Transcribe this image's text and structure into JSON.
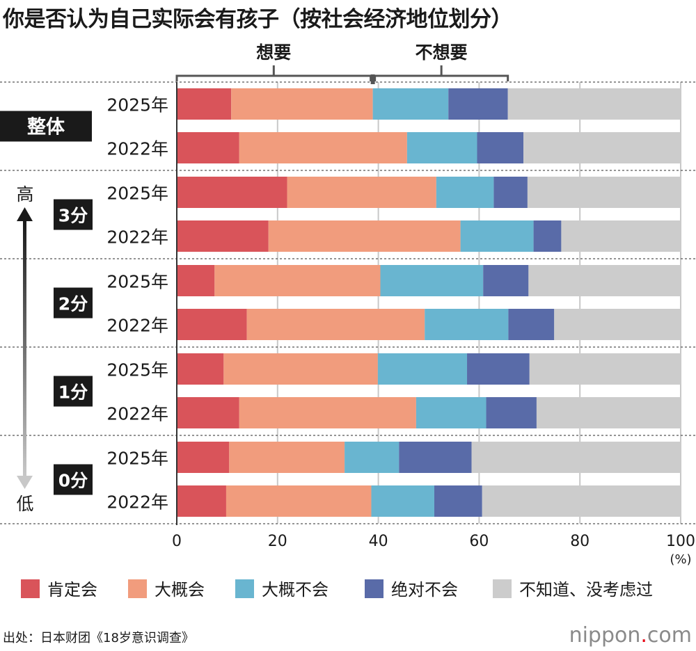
{
  "title": "你是否认为自己实际会有孩子（按社会经济地位划分）",
  "source": "出处：日本财团《18岁意识调查》",
  "logo": {
    "name": "nippon",
    "dot": ".",
    "tld": "com"
  },
  "chart_data": {
    "type": "bar",
    "orientation": "horizontal",
    "stacked": true,
    "xlim": [
      0,
      100
    ],
    "xticks": [
      "0",
      "20",
      "40",
      "60",
      "80",
      "100"
    ],
    "unit_label": "(%)",
    "brackets": [
      {
        "label": "想要",
        "covers": [
          "肯定会",
          "大概会"
        ]
      },
      {
        "label": "不想要",
        "covers": [
          "大概不会",
          "绝对不会"
        ]
      }
    ],
    "axis_arrow": {
      "top": "高",
      "bottom": "低"
    },
    "series": [
      {
        "name": "肯定会",
        "color": "#d9545a"
      },
      {
        "name": "大概会",
        "color": "#f19c7d"
      },
      {
        "name": "大概不会",
        "color": "#69b5d0"
      },
      {
        "name": "绝对不会",
        "color": "#596ba8"
      },
      {
        "name": "不知道、没考虑过",
        "color": "#cccccc"
      }
    ],
    "groups": [
      {
        "label": "整体",
        "rows": [
          {
            "year": "2025年",
            "values": [
              10.8,
              28.1,
              15.0,
              11.8,
              34.3
            ]
          },
          {
            "year": "2022年",
            "values": [
              12.4,
              33.3,
              13.9,
              9.2,
              31.2
            ]
          }
        ]
      },
      {
        "label": "3分",
        "rows": [
          {
            "year": "2025年",
            "values": [
              21.9,
              29.6,
              11.4,
              6.7,
              30.4
            ]
          },
          {
            "year": "2022年",
            "values": [
              18.2,
              38.1,
              14.5,
              5.5,
              23.7
            ]
          }
        ]
      },
      {
        "label": "2分",
        "rows": [
          {
            "year": "2025年",
            "values": [
              7.5,
              32.9,
              20.4,
              9.0,
              30.2
            ]
          },
          {
            "year": "2022年",
            "values": [
              13.9,
              35.3,
              16.6,
              9.1,
              25.1
            ]
          }
        ]
      },
      {
        "label": "1分",
        "rows": [
          {
            "year": "2025年",
            "values": [
              9.3,
              30.6,
              17.7,
              12.4,
              30.0
            ]
          },
          {
            "year": "2022年",
            "values": [
              12.4,
              35.1,
              13.9,
              10.0,
              28.6
            ]
          }
        ]
      },
      {
        "label": "0分",
        "rows": [
          {
            "year": "2025年",
            "values": [
              10.4,
              22.9,
              10.8,
              14.4,
              41.5
            ]
          },
          {
            "year": "2022年",
            "values": [
              9.8,
              28.8,
              12.5,
              9.5,
              39.4
            ]
          }
        ]
      }
    ]
  }
}
